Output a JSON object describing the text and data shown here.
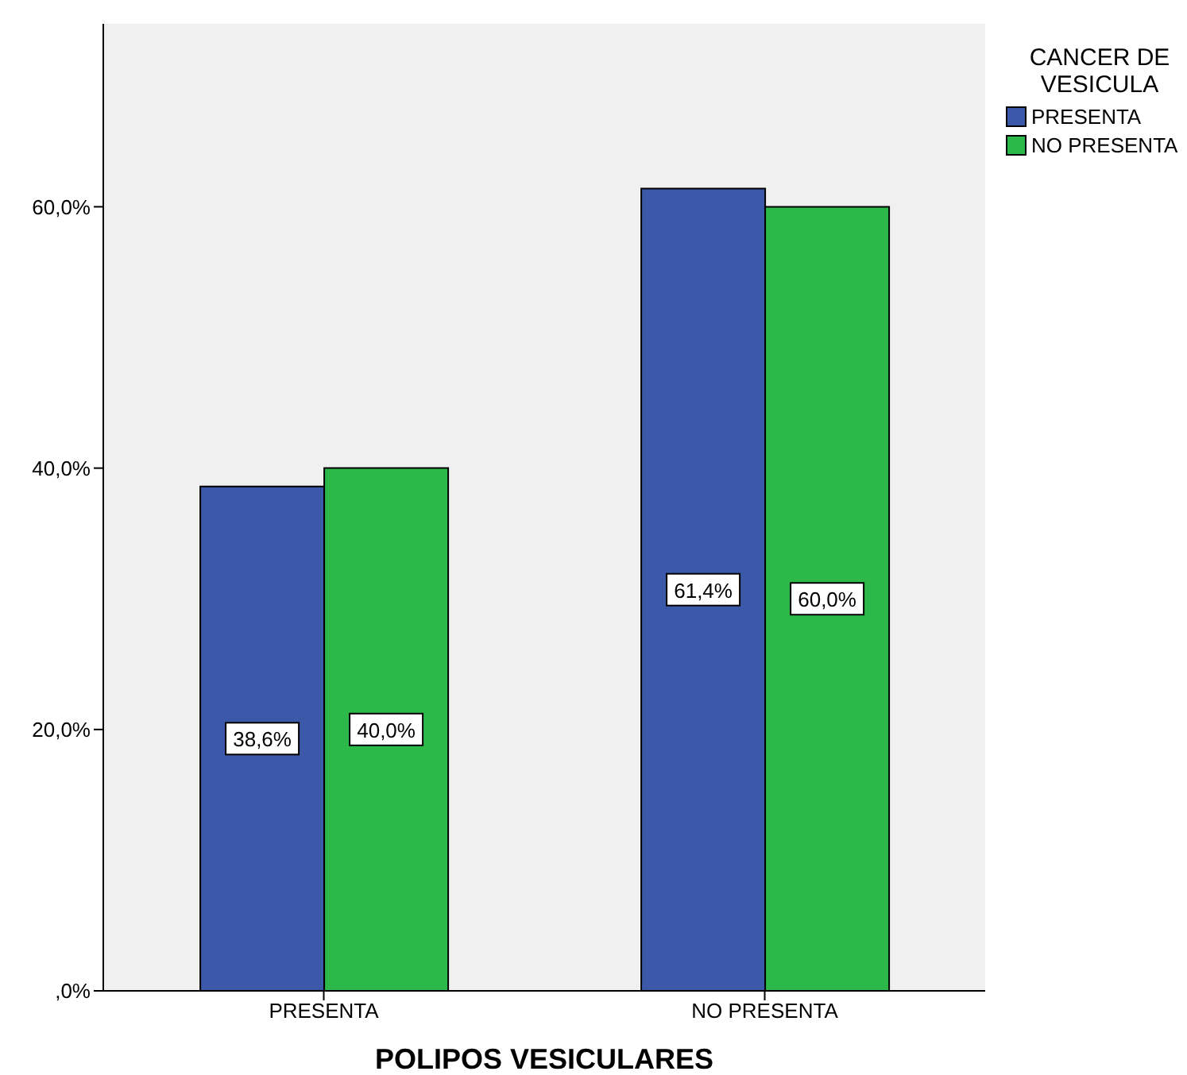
{
  "chart_data": {
    "type": "bar",
    "xlabel": "POLIPOS VESICULARES",
    "legend_title": "CANCER DE VESICULA",
    "categories": [
      "PRESENTA",
      "NO PRESENTA"
    ],
    "series": [
      {
        "name": "PRESENTA",
        "color": "#3c58a8",
        "values": [
          38.6,
          61.4
        ],
        "value_labels": [
          "38,6%",
          "61,4%"
        ]
      },
      {
        "name": "NO PRESENTA",
        "color": "#2db84a",
        "values": [
          40.0,
          60.0
        ],
        "value_labels": [
          "40,0%",
          "60,0%"
        ]
      }
    ],
    "ylim": [
      0,
      74
    ],
    "yticks": [
      {
        "value": 0,
        "label": ",0%"
      },
      {
        "value": 20,
        "label": "20,0%"
      },
      {
        "value": 40,
        "label": "40,0%"
      },
      {
        "value": 60,
        "label": "60,0%"
      }
    ],
    "grid": false,
    "legend": "top right"
  }
}
